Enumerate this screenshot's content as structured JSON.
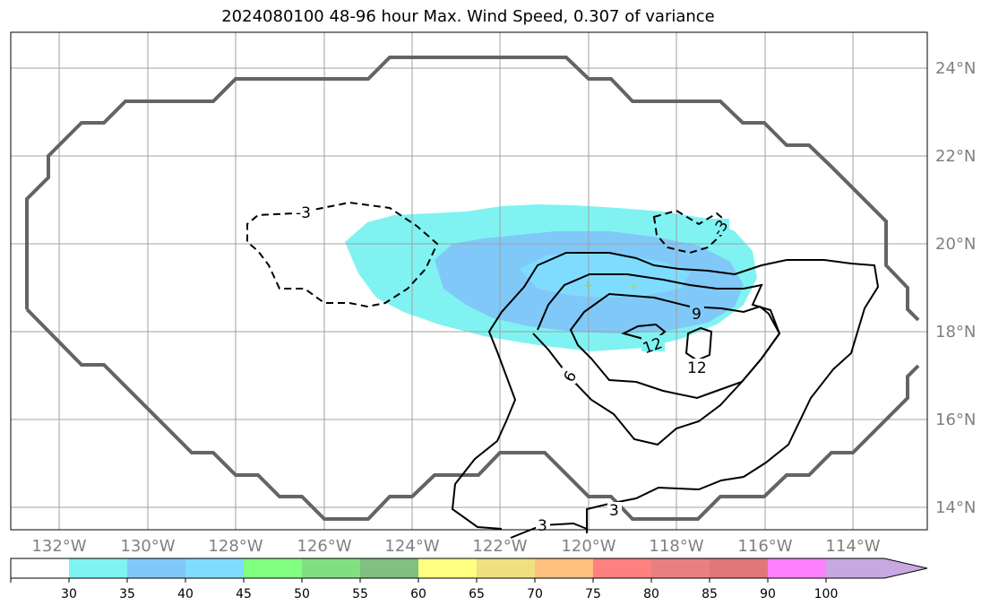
{
  "title": "2024080100 48-96 hour Max. Wind Speed, 0.307 of variance",
  "map": {
    "lon_labels": [
      "132°W",
      "130°W",
      "128°W",
      "126°W",
      "124°W",
      "122°W",
      "120°W",
      "118°W",
      "116°W",
      "114°W"
    ],
    "lat_labels": [
      "24°N",
      "22°N",
      "20°N",
      "18°N",
      "16°N",
      "14°N"
    ],
    "contour_labels": {
      "neg3_west": "-3",
      "neg3_east": "-3",
      "pos3_a": "3",
      "pos3_b": "3",
      "six": "6",
      "nine": "9",
      "twelve_a": "12",
      "twelve_b": "12"
    }
  },
  "colorbar": {
    "labels": [
      "30",
      "35",
      "40",
      "45",
      "50",
      "55",
      "60",
      "65",
      "70",
      "75",
      "80",
      "85",
      "90",
      "100"
    ],
    "colors": [
      "#ffffff",
      "#80f2f2",
      "#80c8f8",
      "#80dcff",
      "#80ff80",
      "#80e080",
      "#80c080",
      "#ffff80",
      "#f0e080",
      "#ffc080",
      "#ff8080",
      "#e88080",
      "#e07878",
      "#ff80ff",
      "#c8a8e0"
    ]
  }
}
